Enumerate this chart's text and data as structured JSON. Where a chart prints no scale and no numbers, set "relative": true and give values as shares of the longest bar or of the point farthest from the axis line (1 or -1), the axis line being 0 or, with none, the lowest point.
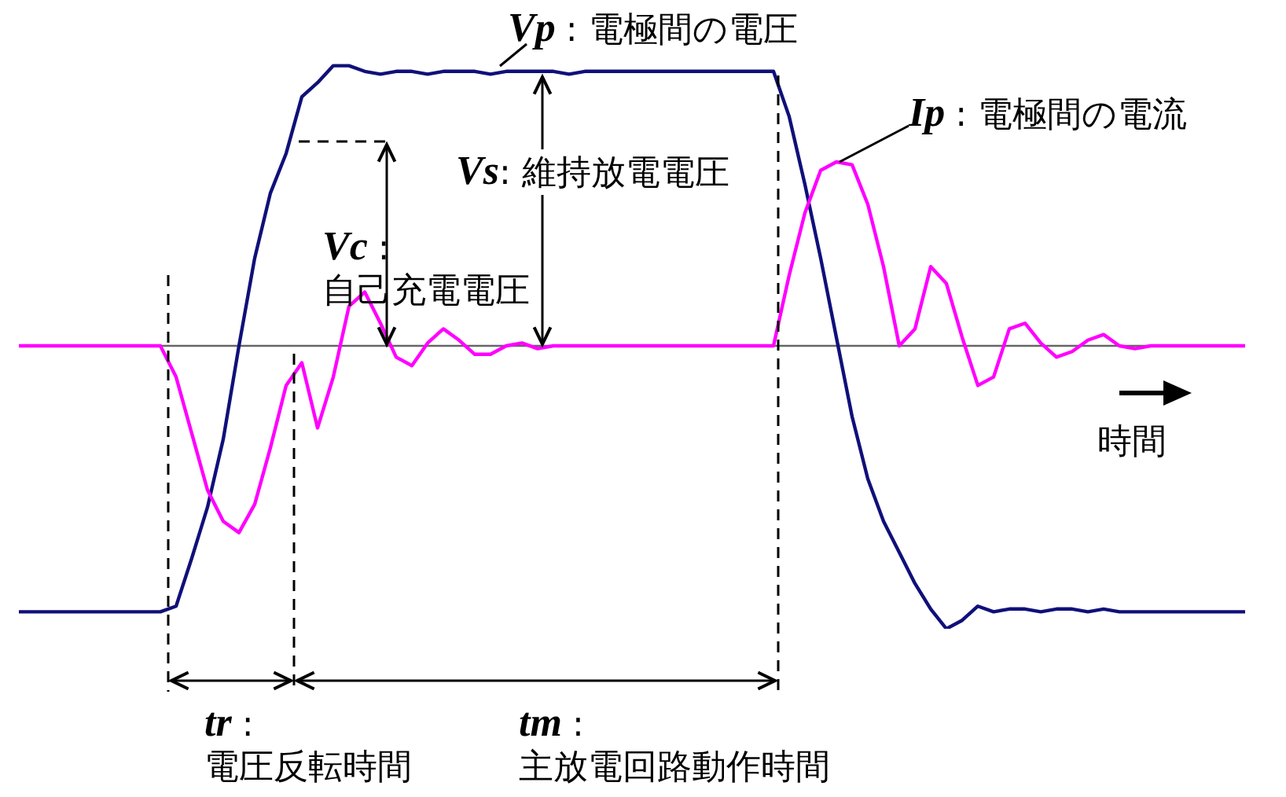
{
  "chart_data": {
    "type": "line",
    "relative": true,
    "grid": false,
    "categories": [
      null,
      null,
      null,
      null,
      null,
      null,
      null,
      null,
      null,
      null,
      null,
      null,
      null,
      null,
      null,
      null,
      null,
      null,
      null,
      null,
      null,
      null,
      null,
      null,
      null,
      null,
      null,
      null,
      null,
      null,
      null,
      null,
      null,
      null,
      null,
      null,
      null,
      null,
      null,
      null,
      null,
      null,
      null,
      null,
      null,
      null,
      null,
      null,
      null,
      null,
      null,
      null,
      null,
      null,
      null,
      null,
      null,
      null,
      null,
      null,
      null,
      null,
      null,
      null,
      null,
      null,
      null,
      null,
      null,
      null,
      null,
      null,
      null,
      null,
      null,
      null,
      null,
      null,
      null
    ],
    "series": [
      {
        "color": "#10107a",
        "values": [
          -0.94,
          -0.94,
          -0.94,
          -0.94,
          -0.94,
          -0.94,
          -0.94,
          -0.94,
          -0.94,
          -0.94,
          -0.92,
          -0.75,
          -0.57,
          -0.33,
          0,
          0.31,
          0.54,
          0.68,
          0.88,
          0.93,
          0.99,
          0.99,
          0.97,
          0.96,
          0.97,
          0.97,
          0.96,
          0.97,
          0.97,
          0.97,
          0.96,
          0.97,
          0.97,
          0.97,
          0.97,
          0.96,
          0.97,
          0.97,
          0.97,
          0.97,
          0.97,
          0.97,
          0.97,
          0.97,
          0.97,
          0.97,
          0.97,
          0.97,
          0.97,
          0.81,
          0.57,
          0.31,
          0.03,
          -0.25,
          -0.47,
          -0.62,
          -0.73,
          -0.84,
          -0.93,
          -1,
          -0.97,
          -0.92,
          -0.94,
          -0.93,
          -0.93,
          -0.94,
          -0.93,
          -0.93,
          -0.94,
          -0.93,
          -0.94,
          -0.94,
          -0.94,
          -0.94,
          -0.94,
          -0.94,
          -0.94,
          -0.94,
          -0.94
        ]
      },
      {
        "color": "#ff00ff",
        "values": [
          0,
          0,
          0,
          0,
          0,
          0,
          0,
          0,
          0,
          0,
          -0.11,
          -0.31,
          -0.51,
          -0.62,
          -0.66,
          -0.56,
          -0.36,
          -0.14,
          -0.06,
          -0.29,
          -0.11,
          0.14,
          0.19,
          0.08,
          -0.04,
          -0.07,
          0.01,
          0.06,
          0.02,
          -0.03,
          -0.03,
          0,
          0.01,
          -0.01,
          0,
          0,
          0,
          0,
          0,
          0,
          0,
          0,
          0,
          0,
          0,
          0,
          0,
          0,
          0,
          0.25,
          0.47,
          0.62,
          0.65,
          0.64,
          0.5,
          0.28,
          0,
          0.06,
          0.28,
          0.22,
          0.03,
          -0.14,
          -0.11,
          0.06,
          0.08,
          0.01,
          -0.04,
          -0.02,
          0.02,
          0.04,
          0,
          -0.01,
          0,
          0,
          0,
          0,
          0,
          0,
          0
        ]
      }
    ],
    "annotations": [
      "Vp : 電極間の電圧",
      "Ip : 電極間の電流",
      "Vs: 維持放電電圧",
      "Vc : 自己充電電圧",
      "tr : 電圧反転時間",
      "tm : 主放電回路動作時間",
      "時間"
    ]
  }
}
